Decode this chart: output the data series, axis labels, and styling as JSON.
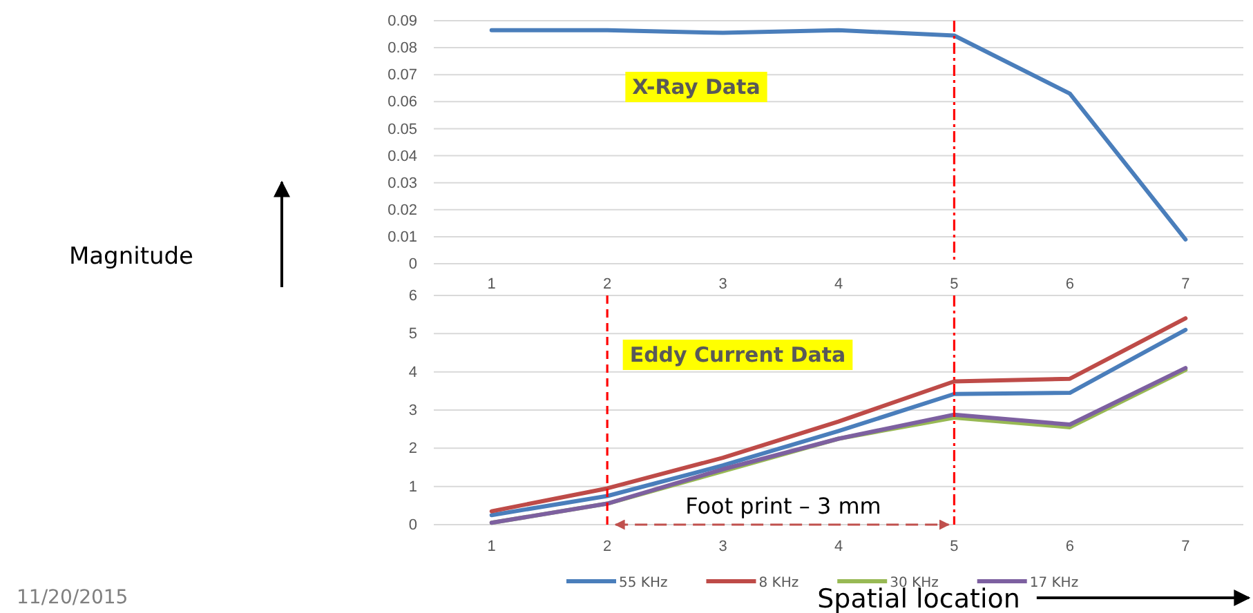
{
  "chart_data": [
    {
      "type": "line",
      "categories": [
        "1",
        "2",
        "3",
        "4",
        "5",
        "6",
        "7"
      ],
      "series": [
        {
          "color": "#4a7ebb",
          "values": [
            0.0865,
            0.0865,
            0.0855,
            0.0865,
            0.0845,
            0.063,
            0.009
          ]
        }
      ],
      "ylim": [
        0,
        0.09
      ],
      "yticks": [
        0,
        0.01,
        0.02,
        0.03,
        0.04,
        0.05,
        0.06,
        0.07,
        0.08,
        0.09
      ],
      "grid": "y",
      "ref_lines": [
        {
          "axis": "x",
          "value": "5",
          "color": "#ff0000",
          "line_style": "dashdot"
        }
      ],
      "annotations": [
        "X-Ray Data",
        "Magnitude"
      ]
    },
    {
      "type": "line",
      "categories": [
        "1",
        "2",
        "3",
        "4",
        "5",
        "6",
        "7"
      ],
      "series": [
        {
          "name": "55 KHz",
          "color": "#4a7ebb",
          "values": [
            0.25,
            0.75,
            1.55,
            2.45,
            3.42,
            3.45,
            5.1
          ]
        },
        {
          "name": "8 KHz",
          "color": "#be4b48",
          "values": [
            0.35,
            0.95,
            1.75,
            2.7,
            3.75,
            3.82,
            5.4
          ]
        },
        {
          "name": "30 KHz",
          "color": "#98b954",
          "values": [
            0.05,
            0.55,
            1.4,
            2.25,
            2.8,
            2.55,
            4.05
          ]
        },
        {
          "name": "17 KHz",
          "color": "#7d60a0",
          "values": [
            0.05,
            0.55,
            1.45,
            2.25,
            2.88,
            2.62,
            4.1
          ]
        }
      ],
      "ylim": [
        0,
        6
      ],
      "yticks": [
        0,
        1,
        2,
        3,
        4,
        5,
        6
      ],
      "grid": "y",
      "legend": "bottom",
      "xlabel": "Spatial location",
      "ref_lines": [
        {
          "axis": "x",
          "value": "5",
          "color": "#ff0000",
          "line_style": "dashdot"
        },
        {
          "axis": "x",
          "value": "2",
          "color": "#ff0000",
          "line_style": "dashed"
        }
      ],
      "annotations": [
        "Eddy Current Data",
        "Foot print – 3 mm",
        "11/20/2015"
      ]
    }
  ]
}
